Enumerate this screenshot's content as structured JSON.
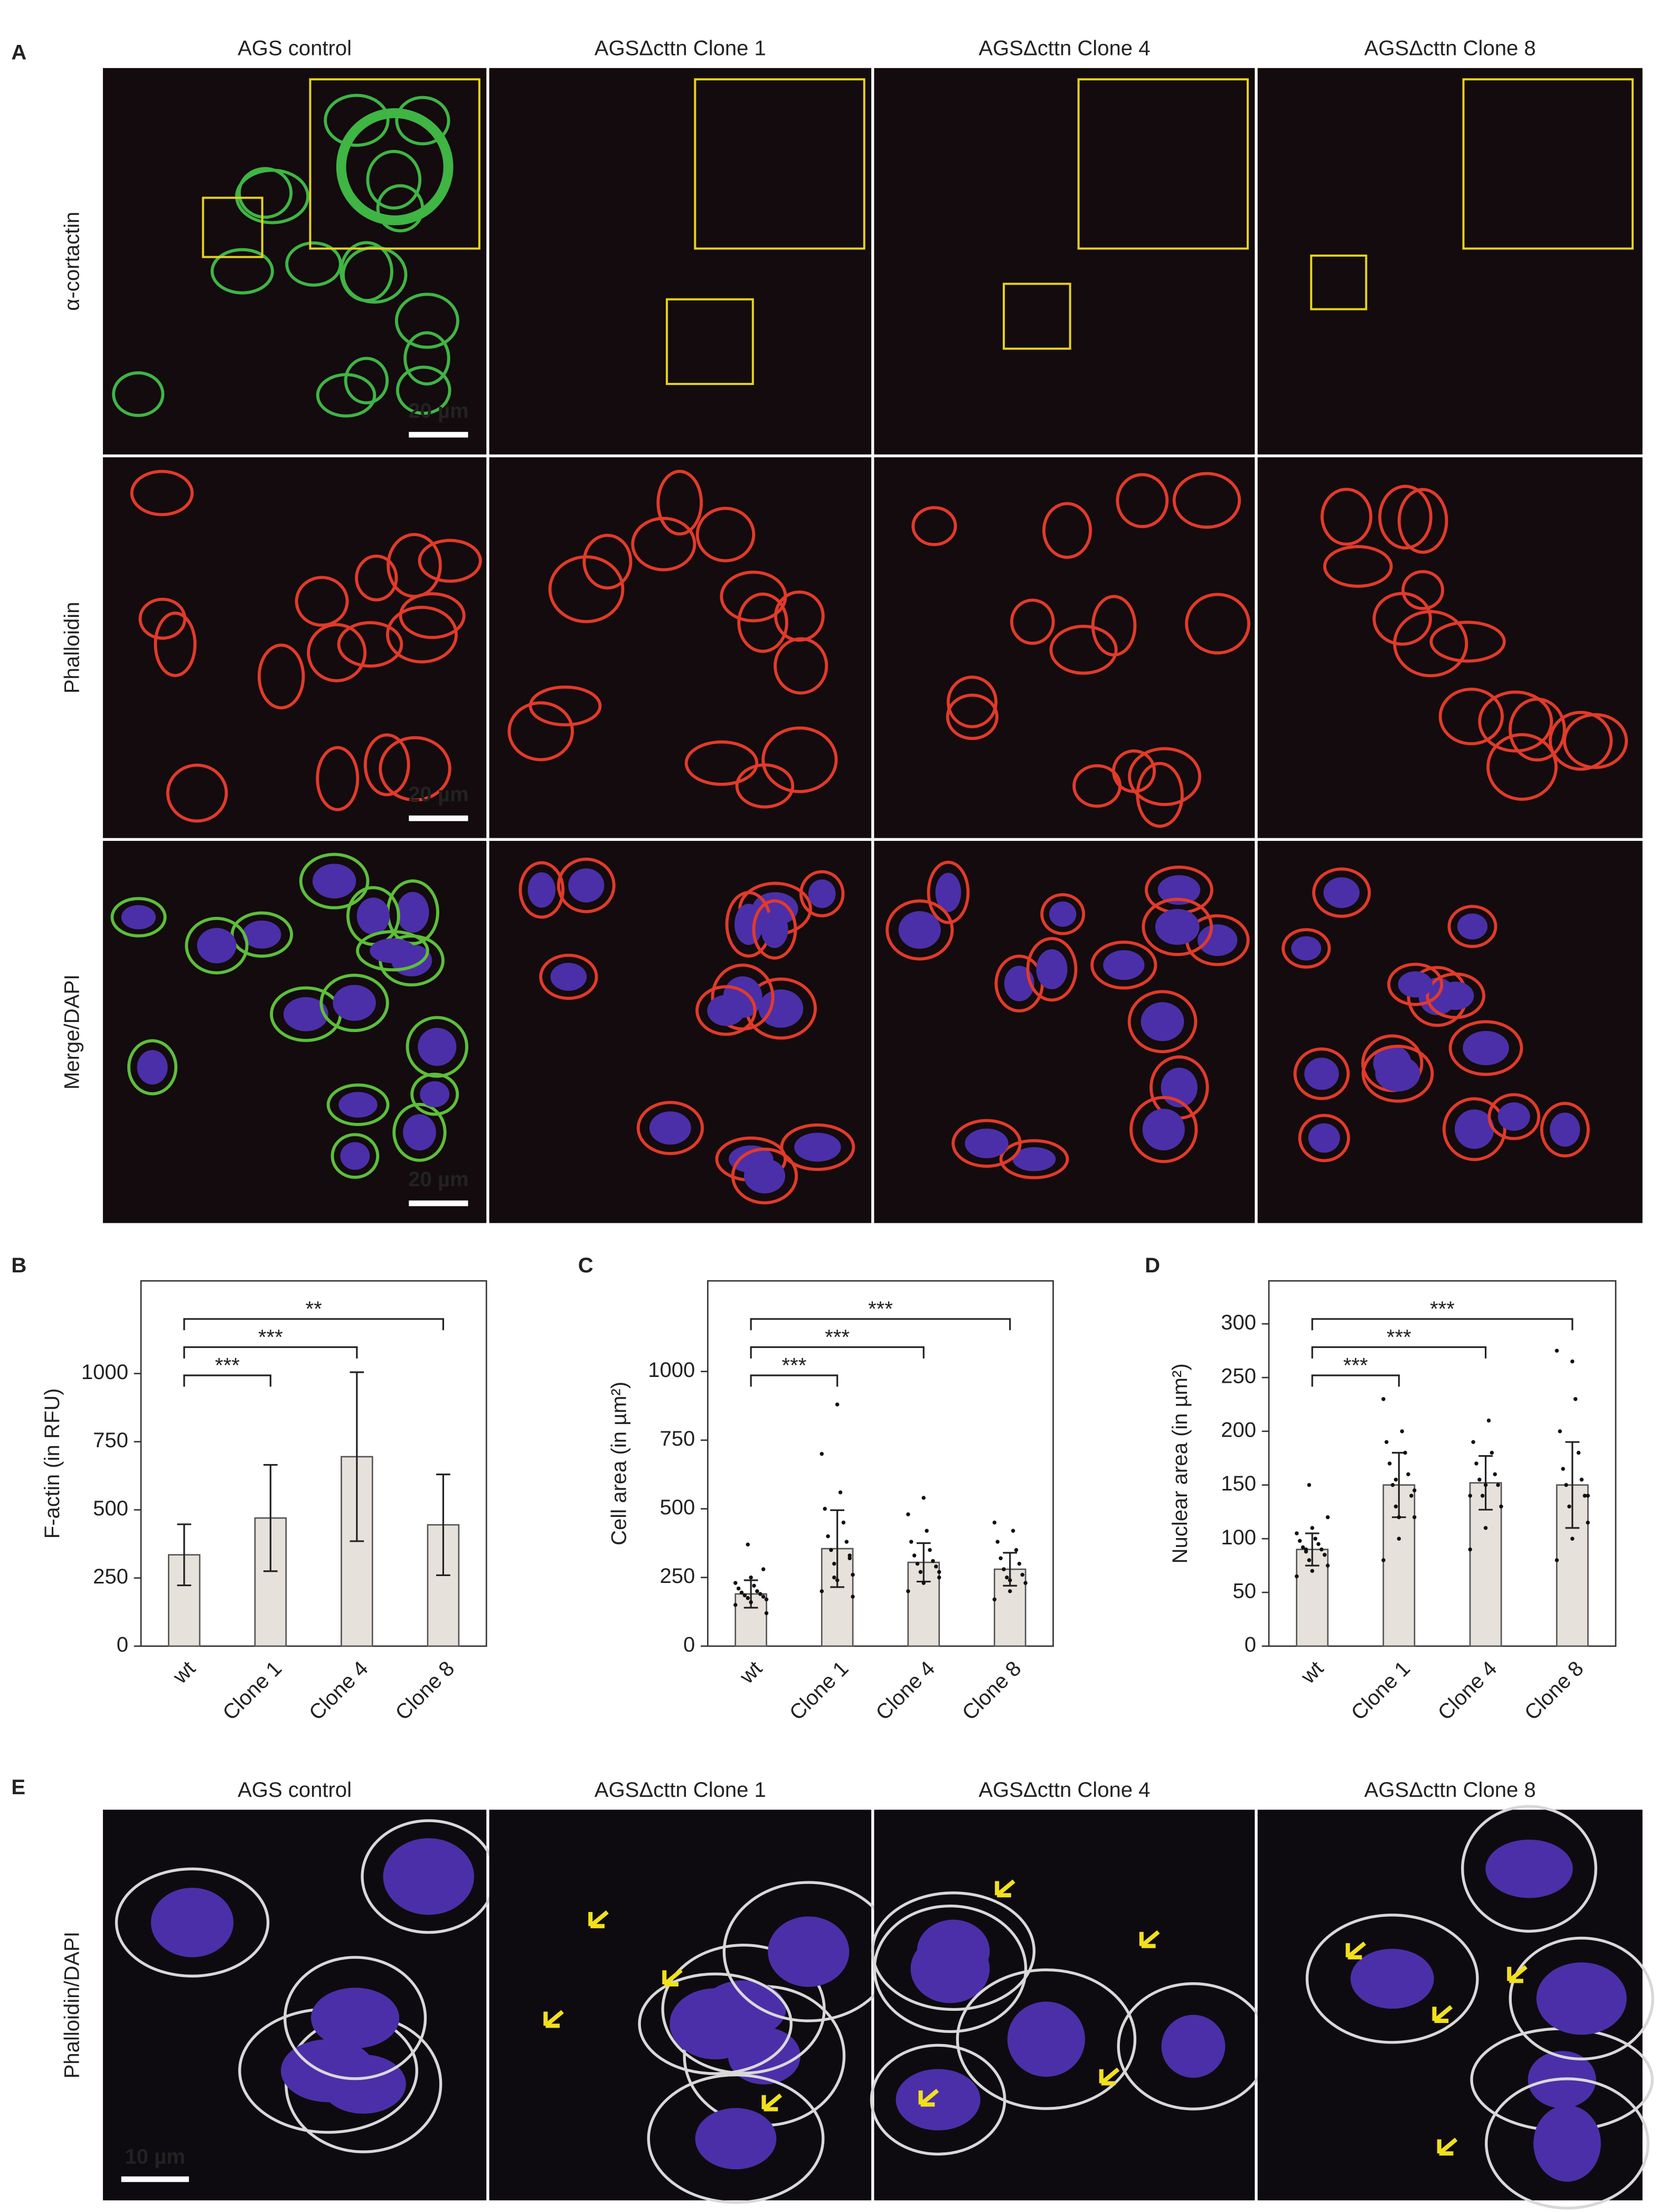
{
  "panel_letters": [
    "A",
    "B",
    "C",
    "D",
    "E"
  ],
  "panel_a": {
    "column_titles": [
      "AGS control",
      "AGSΔcttn  Clone 1",
      "AGSΔcttn  Clone 4",
      "AGSΔcttn  Clone 8"
    ],
    "row_labels": [
      "α-cortactin",
      "Phalloidin",
      "Merge/DAPI"
    ],
    "scale_bars": [
      "20 µm",
      "20 µm",
      "20 µm"
    ]
  },
  "panel_e": {
    "column_titles": [
      "AGS control",
      "AGSΔcttn  Clone 1",
      "AGSΔcttn Clone 4",
      "AGSΔcttn  Clone 8"
    ],
    "row_label": "Phalloidin/DAPI",
    "scale_bar": "10 µm"
  },
  "chart_data": [
    {
      "type": "bar",
      "ylabel": "F-actin (in RFU)",
      "categories": [
        "wt",
        "Clone 1",
        "Clone 4",
        "Clone 8"
      ],
      "values": [
        335,
        470,
        695,
        445
      ],
      "errors": [
        112,
        195,
        310,
        185
      ],
      "color": "#e6e1db",
      "ylim": [
        0,
        1340
      ],
      "yticks": [
        0,
        250,
        500,
        750,
        1000
      ],
      "significance": [
        null,
        "***",
        "***",
        "**"
      ]
    },
    {
      "type": "bar",
      "ylabel": "Cell area (in µm²)",
      "categories": [
        "wt",
        "Clone 1",
        "Clone 4",
        "Clone 8"
      ],
      "values": [
        190,
        355,
        305,
        280
      ],
      "errors": [
        50,
        140,
        70,
        60
      ],
      "color": "#e6e1db",
      "ylim": [
        0,
        1330
      ],
      "yticks": [
        0,
        250,
        500,
        750,
        1000
      ],
      "significance": [
        null,
        "***",
        "***",
        "***"
      ],
      "points": [
        [
          150,
          160,
          170,
          175,
          180,
          185,
          190,
          195,
          200,
          210,
          220,
          230,
          250,
          120,
          370,
          280
        ],
        [
          200,
          240,
          260,
          300,
          320,
          350,
          380,
          400,
          450,
          500,
          560,
          700,
          880,
          180,
          250,
          330
        ],
        [
          200,
          230,
          250,
          270,
          290,
          300,
          310,
          330,
          350,
          380,
          420,
          480,
          540,
          270
        ],
        [
          170,
          200,
          230,
          250,
          260,
          280,
          300,
          320,
          350,
          380,
          420,
          450,
          240
        ]
      ]
    },
    {
      "type": "bar",
      "ylabel": "Nuclear area (in µm²)",
      "categories": [
        "wt",
        "Clone 1",
        "Clone 4",
        "Clone 8"
      ],
      "values": [
        90,
        150,
        152,
        150
      ],
      "errors": [
        15,
        30,
        25,
        40
      ],
      "color": "#e6e1db",
      "ylim": [
        0,
        340
      ],
      "yticks": [
        0,
        50,
        100,
        150,
        200,
        250,
        300
      ],
      "significance": [
        null,
        "***",
        "***",
        "***"
      ],
      "points": [
        [
          65,
          70,
          75,
          80,
          85,
          88,
          90,
          92,
          95,
          98,
          100,
          105,
          110,
          120,
          150,
          85,
          90
        ],
        [
          80,
          100,
          120,
          130,
          140,
          150,
          160,
          170,
          180,
          190,
          200,
          230,
          120,
          145,
          155
        ],
        [
          90,
          110,
          130,
          140,
          150,
          155,
          160,
          170,
          180,
          190,
          210,
          140,
          150
        ],
        [
          80,
          100,
          115,
          130,
          140,
          150,
          155,
          165,
          180,
          200,
          230,
          275,
          265,
          140
        ]
      ]
    }
  ]
}
